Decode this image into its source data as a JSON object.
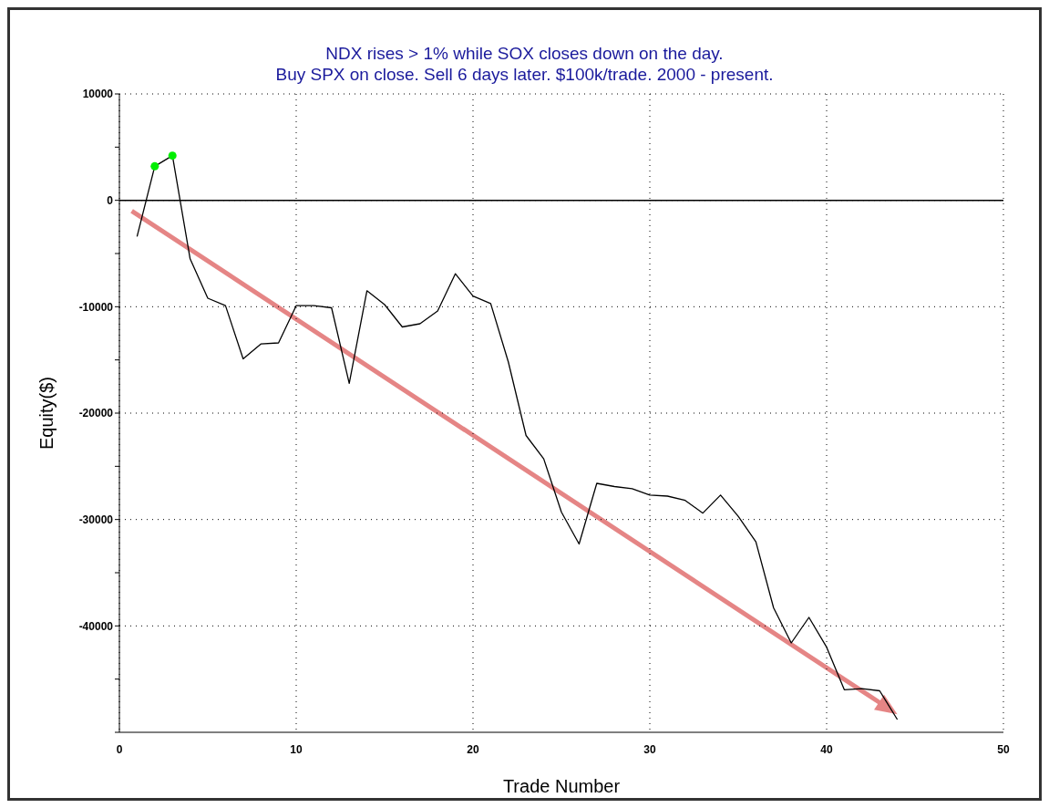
{
  "chart_data": {
    "type": "line",
    "title": "NDX rises > 1% while SOX closes down on the day.",
    "subtitle": "Buy SPX on close. Sell 6 days later. $100k/trade. 2000 - present.",
    "xlabel": "Trade Number",
    "ylabel": "Equity($)",
    "x": [
      1,
      2,
      3,
      4,
      5,
      6,
      7,
      8,
      9,
      10,
      11,
      12,
      13,
      14,
      15,
      16,
      17,
      18,
      19,
      20,
      21,
      22,
      23,
      24,
      25,
      26,
      27,
      28,
      29,
      30,
      31,
      32,
      33,
      34,
      35,
      36,
      37,
      38,
      39,
      40,
      41,
      42,
      43,
      44
    ],
    "series": [
      {
        "color": "#000000",
        "values": [
          -3400,
          3200,
          4200,
          -5500,
          -9200,
          -9900,
          -14900,
          -13500,
          -13400,
          -9900,
          -9900,
          -10100,
          -17200,
          -8500,
          -9800,
          -11900,
          -11600,
          -10400,
          -6900,
          -9000,
          -9700,
          -15200,
          -22100,
          -24300,
          -29300,
          -32300,
          -26600,
          -26900,
          -27100,
          -27700,
          -27800,
          -28200,
          -29400,
          -27700,
          -29700,
          -32100,
          -38300,
          -41600,
          -39200,
          -42000,
          -46000,
          -45900,
          -46100,
          -48800
        ]
      },
      {
        "type": "scatter",
        "color": "#00ee00",
        "x": [
          2,
          3
        ],
        "values": [
          3200,
          4200
        ],
        "marker": "circle"
      }
    ],
    "xlim": [
      0,
      50
    ],
    "xticks": [
      0,
      10,
      20,
      30,
      40,
      50
    ],
    "ylim": [
      -50000,
      10000
    ],
    "yticks": [
      10000,
      {
        "value": 5000,
        "label": null
      },
      0,
      {
        "value": -5000,
        "label": null
      },
      -10000,
      {
        "value": -15000,
        "label": null
      },
      -20000,
      {
        "value": -25000,
        "label": null
      },
      -30000,
      {
        "value": -35000,
        "label": null
      },
      -40000,
      {
        "value": -45000,
        "label": null
      },
      {
        "value": -50000,
        "label": null
      }
    ],
    "grid": true,
    "marker": "none",
    "ref_lines": [
      {
        "axis": "y",
        "value": 0,
        "color": "#000000",
        "line_style": "solid"
      }
    ]
  }
}
